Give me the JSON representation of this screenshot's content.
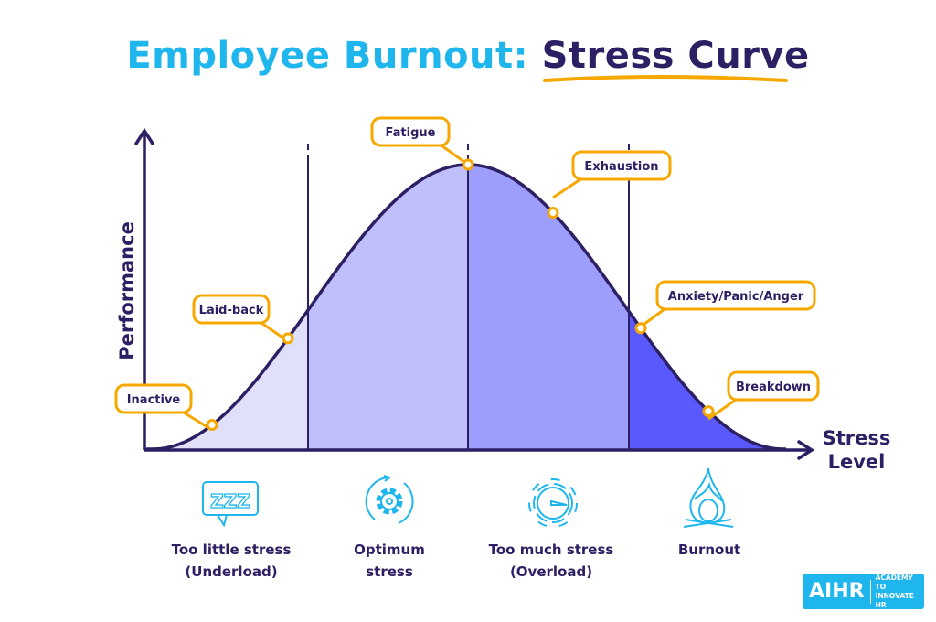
{
  "title": {
    "part1": "Employee Burnout:",
    "part2": "Stress Curve"
  },
  "axes": {
    "y_label": "Performance",
    "x_label_line1": "Stress",
    "x_label_line2": "Level"
  },
  "callouts": [
    "Inactive",
    "Laid-back",
    "Fatigue",
    "Exhaustion",
    "Anxiety/Panic/Anger",
    "Breakdown"
  ],
  "zones": [
    {
      "label_line1": "Too little stress",
      "label_line2": "(Underload)",
      "icon": "zzz-speech-bubble-icon",
      "color": "#e0e0fb"
    },
    {
      "label_line1": "Optimum",
      "label_line2": "stress",
      "icon": "gear-cycle-icon",
      "color": "#bfbffb"
    },
    {
      "label_line1": "Too much stress",
      "label_line2": "(Overload)",
      "icon": "gauge-icon",
      "color": "#9d9dfc"
    },
    {
      "label_line1": "Burnout",
      "label_line2": "",
      "icon": "flame-icon",
      "color": "#5a5afc"
    }
  ],
  "colors": {
    "accent": "#f7a800",
    "dark": "#2d1f63",
    "cyan": "#1fb6ee"
  },
  "logo": {
    "name": "AIHR",
    "tagline_line1": "ACADEMY TO",
    "tagline_line2": "INNOVATE HR"
  }
}
